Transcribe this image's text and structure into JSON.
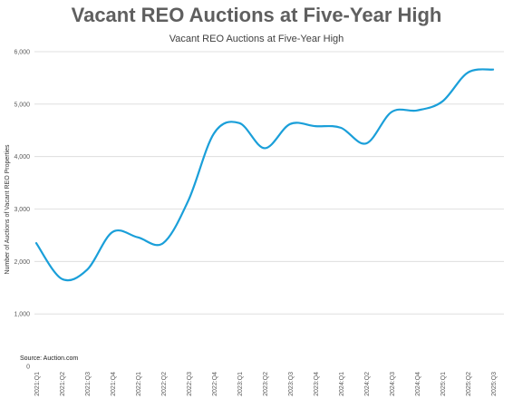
{
  "title": "Vacant REO Auctions at Five-Year High",
  "chart_data": {
    "type": "line",
    "title": "Vacant REO Auctions at Five-Year High",
    "xlabel": "",
    "ylabel": "Number of Auctions of Vacant REO Properties",
    "categories": [
      "2021:Q1",
      "2021:Q2",
      "2021:Q3",
      "2021:Q4",
      "2022:Q1",
      "2022:Q2",
      "2022:Q3",
      "2022:Q4",
      "2023:Q1",
      "2023:Q2",
      "2023:Q3",
      "2023:Q4",
      "2024:Q1",
      "2024:Q2",
      "2024:Q3",
      "2024:Q4",
      "2025:Q1",
      "2025:Q2",
      "2025:Q3"
    ],
    "series": [
      {
        "name": "",
        "color": "#1a9fd9",
        "values": [
          2350,
          1670,
          1840,
          2560,
          2460,
          2350,
          3170,
          4440,
          4640,
          4160,
          4620,
          4580,
          4550,
          4250,
          4850,
          4880,
          5050,
          5600,
          5660
        ]
      }
    ],
    "ylim": [
      0,
      6000
    ],
    "yticks": [
      0,
      1000,
      2000,
      3000,
      4000,
      5000,
      6000
    ],
    "ytick_labels": [
      "0",
      "1,000",
      "2,000",
      "3,000",
      "4,000",
      "5,000",
      "6,000"
    ],
    "grid": true,
    "legend": "none"
  },
  "source": "Source: Auction.com"
}
